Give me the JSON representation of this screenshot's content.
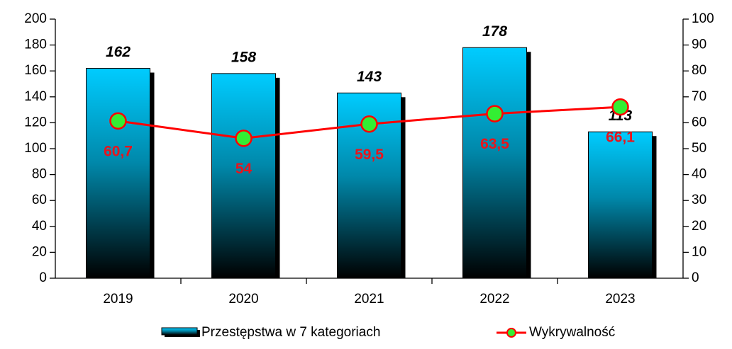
{
  "chart_data": {
    "type": "bar",
    "categories": [
      "2019",
      "2020",
      "2021",
      "2022",
      "2023"
    ],
    "series": [
      {
        "name": "Przestępstwa w 7 kategoriach",
        "type": "bar",
        "color": "#00ccff",
        "values": [
          162,
          158,
          143,
          178,
          113
        ]
      },
      {
        "name": "Wykrywalność",
        "type": "line",
        "axis": "y2",
        "color": "#ff0000",
        "marker_color": "#33ee33",
        "values": [
          60.7,
          54,
          59.5,
          63.5,
          66.1
        ],
        "value_labels": [
          "60,7",
          "54",
          "59,5",
          "63,5",
          "66,1"
        ]
      }
    ],
    "ylim": [
      0,
      200
    ],
    "yticks": [
      0,
      20,
      40,
      60,
      80,
      100,
      120,
      140,
      160,
      180,
      200
    ],
    "y2lim": [
      0,
      100
    ],
    "y2ticks": [
      0,
      10,
      20,
      30,
      40,
      50,
      60,
      70,
      80,
      90,
      100
    ],
    "legend": "bottom"
  }
}
